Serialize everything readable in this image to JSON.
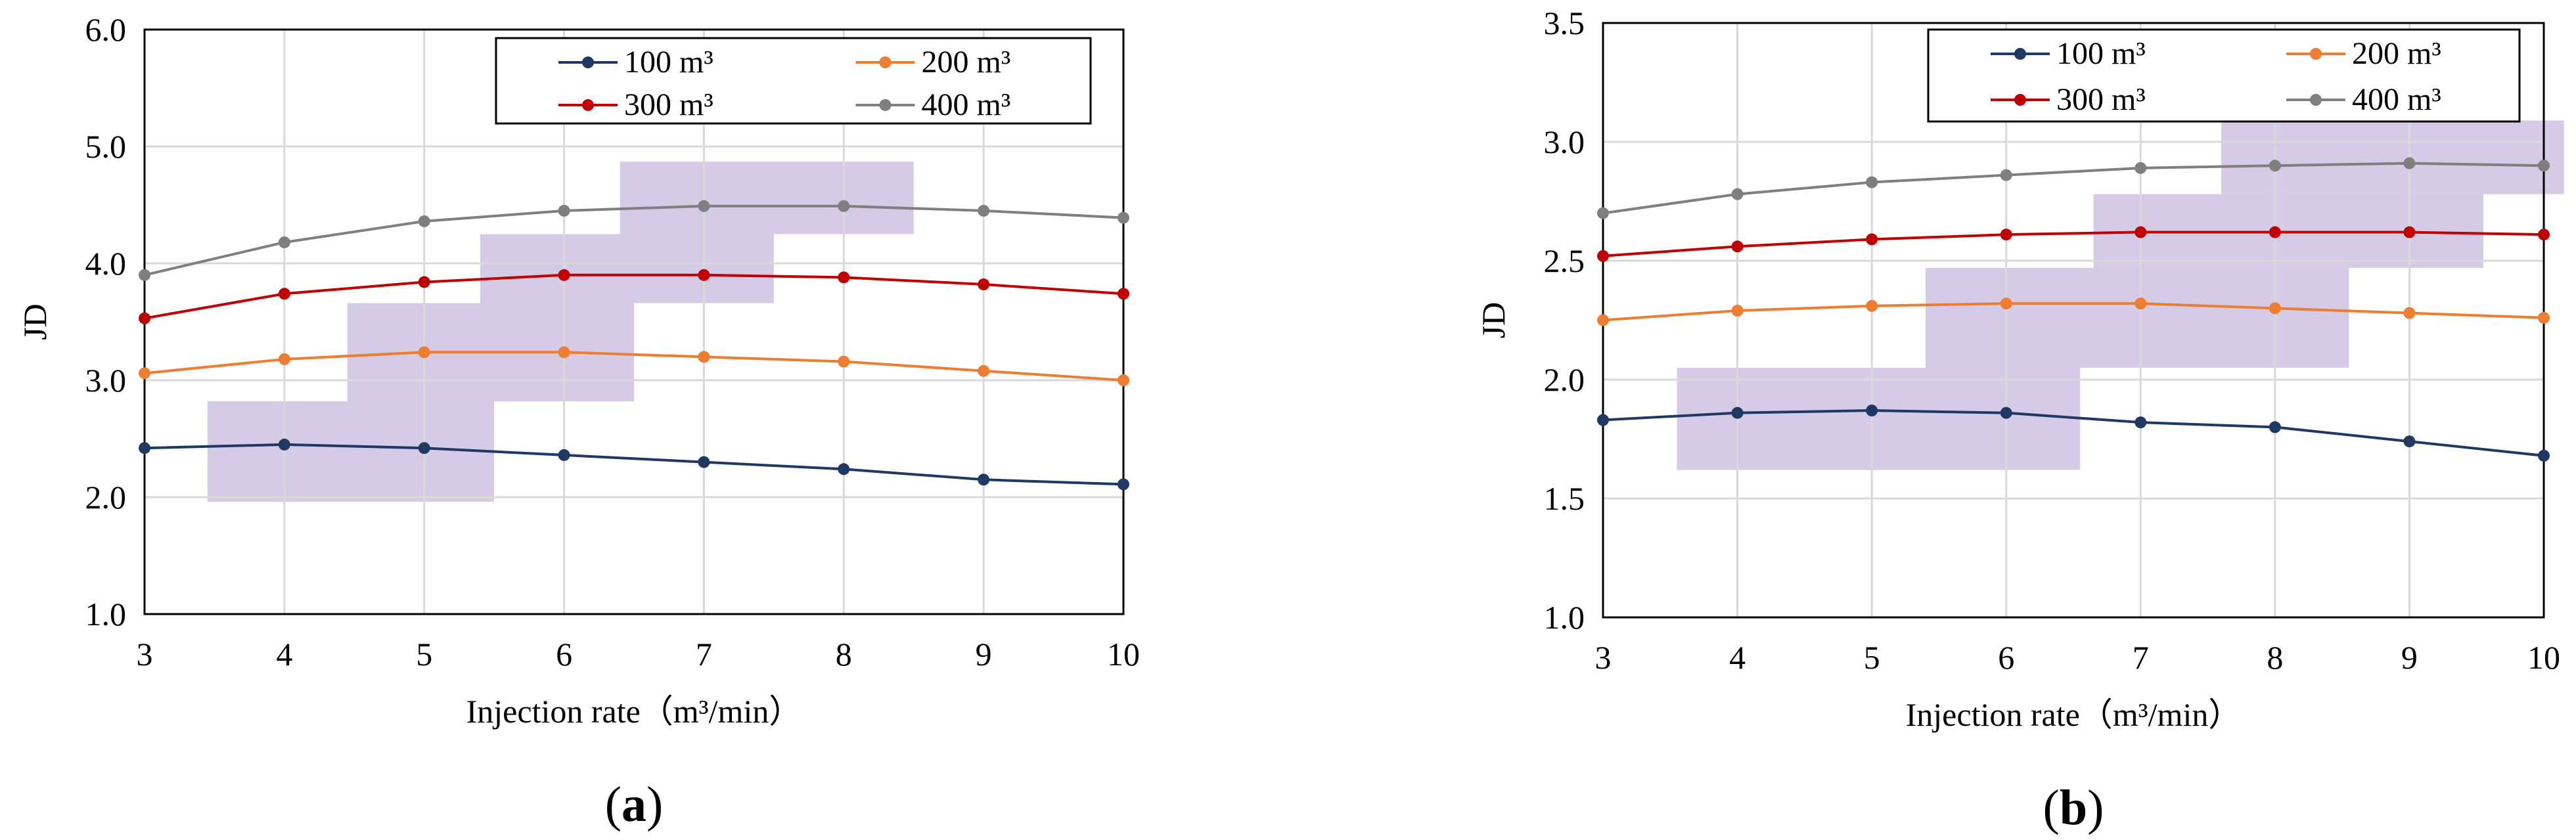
{
  "colors": {
    "s100": "#1f3864",
    "s200": "#ed7d31",
    "s300": "#c00000",
    "s400": "#7f7f7f",
    "highlight": "#b4a0d2",
    "grid": "#d9d9d9"
  },
  "chart_data": [
    {
      "type": "line",
      "panel_label": "a",
      "xlabel": "Injection rate（m³/min）",
      "ylabel": "JD",
      "xlim": [
        3,
        10
      ],
      "ylim": [
        1.0,
        6.0
      ],
      "x_ticks": [
        "3",
        "4",
        "5",
        "6",
        "7",
        "8",
        "9",
        "10"
      ],
      "y_ticks": [
        "1.0",
        "2.0",
        "3.0",
        "4.0",
        "5.0",
        "6.0"
      ],
      "x": [
        3,
        4,
        5,
        6,
        7,
        8,
        9,
        10
      ],
      "series": [
        {
          "name": "100 m³",
          "color_key": "s100",
          "values": [
            2.42,
            2.45,
            2.42,
            2.36,
            2.3,
            2.24,
            2.15,
            2.11
          ]
        },
        {
          "name": "200 m³",
          "color_key": "s200",
          "values": [
            3.06,
            3.18,
            3.24,
            3.24,
            3.2,
            3.16,
            3.08,
            3.0
          ]
        },
        {
          "name": "300 m³",
          "color_key": "s300",
          "values": [
            3.53,
            3.74,
            3.84,
            3.9,
            3.9,
            3.88,
            3.82,
            3.74
          ]
        },
        {
          "name": "400 m³",
          "color_key": "s400",
          "values": [
            3.9,
            4.18,
            4.36,
            4.45,
            4.49,
            4.49,
            4.45,
            4.39
          ]
        }
      ],
      "highlight_boxes": [
        {
          "x": [
            3.45,
            5.5
          ],
          "y": [
            1.96,
            2.82
          ]
        },
        {
          "x": [
            4.45,
            6.5
          ],
          "y": [
            2.82,
            3.66
          ]
        },
        {
          "x": [
            5.4,
            7.5
          ],
          "y": [
            3.66,
            4.25
          ]
        },
        {
          "x": [
            6.4,
            8.5
          ],
          "y": [
            4.25,
            4.87
          ]
        }
      ]
    },
    {
      "type": "line",
      "panel_label": "b",
      "xlabel": "Injection rate（m³/min）",
      "ylabel": "JD",
      "xlim": [
        3,
        10
      ],
      "ylim": [
        1.0,
        3.5
      ],
      "x_ticks": [
        "3",
        "4",
        "5",
        "6",
        "7",
        "8",
        "9",
        "10"
      ],
      "y_ticks": [
        "1.0",
        "1.5",
        "2.0",
        "2.5",
        "3.0",
        "3.5"
      ],
      "x": [
        3,
        4,
        5,
        6,
        7,
        8,
        9,
        10
      ],
      "series": [
        {
          "name": "100 m³",
          "color_key": "s100",
          "values": [
            1.83,
            1.86,
            1.87,
            1.86,
            1.82,
            1.8,
            1.74,
            1.68
          ]
        },
        {
          "name": "200 m³",
          "color_key": "s200",
          "values": [
            2.25,
            2.29,
            2.31,
            2.32,
            2.32,
            2.3,
            2.28,
            2.26
          ]
        },
        {
          "name": "300 m³",
          "color_key": "s300",
          "values": [
            2.52,
            2.56,
            2.59,
            2.61,
            2.62,
            2.62,
            2.62,
            2.61
          ]
        },
        {
          "name": "400 m³",
          "color_key": "s400",
          "values": [
            2.7,
            2.78,
            2.83,
            2.86,
            2.89,
            2.9,
            2.91,
            2.9
          ]
        }
      ],
      "highlight_boxes": [
        {
          "x": [
            3.55,
            6.55
          ],
          "y": [
            1.62,
            2.05
          ]
        },
        {
          "x": [
            5.4,
            8.55
          ],
          "y": [
            2.05,
            2.47
          ]
        },
        {
          "x": [
            6.65,
            9.55
          ],
          "y": [
            2.47,
            2.78
          ]
        },
        {
          "x": [
            7.6,
            10.15
          ],
          "y": [
            2.78,
            3.09
          ]
        }
      ]
    }
  ]
}
